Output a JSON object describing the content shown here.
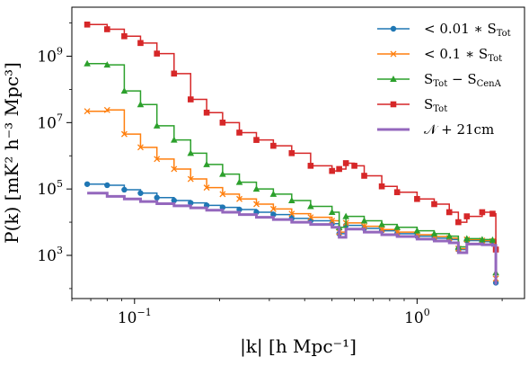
{
  "chart_data": {
    "type": "line",
    "xscale": "log",
    "yscale": "log",
    "xlim": [
      0.06,
      2.4
    ],
    "ylim": [
      50,
      30000000000.0
    ],
    "xlabel": "|k| [h Mpc⁻¹]",
    "ylabel": "P(k) [mK² h⁻³ Mpc³]",
    "xticks": [
      {
        "value": 0.1,
        "base": "10",
        "exp": "−1"
      },
      {
        "value": 1,
        "base": "10",
        "exp": "0"
      }
    ],
    "yticks": [
      {
        "value": 1000,
        "base": "10",
        "exp": "3"
      },
      {
        "value": 100000,
        "base": "10",
        "exp": "5"
      },
      {
        "value": 10000000,
        "base": "10",
        "exp": "7"
      },
      {
        "value": 1000000000,
        "base": "10",
        "exp": "9"
      }
    ],
    "legend_position": "top-right",
    "grid": false,
    "series": [
      {
        "name": "< 0.01 * S_Tot",
        "legend_label": "< 0.01 ∗ S",
        "legend_sub": "Tot",
        "color": "#1f77b4",
        "marker": "circle",
        "x": [
          0.068,
          0.08,
          0.092,
          0.105,
          0.12,
          0.138,
          0.158,
          0.18,
          0.205,
          0.235,
          0.27,
          0.31,
          0.36,
          0.42,
          0.5,
          0.53,
          0.56,
          0.65,
          0.75,
          0.85,
          1.0,
          1.15,
          1.3,
          1.4,
          1.5,
          1.7,
          1.85,
          1.9
        ],
        "y": [
          140000,
          130000,
          95000,
          75000,
          55000,
          45000,
          38000,
          32000,
          28000,
          24000,
          20000,
          17000,
          13000,
          11000,
          9000,
          4500,
          8000,
          6500,
          5500,
          4500,
          3800,
          3300,
          3000,
          1500,
          2800,
          2600,
          2500,
          150
        ]
      },
      {
        "name": "< 0.1 * S_Tot",
        "legend_label": "< 0.1 ∗ S",
        "legend_sub": "Tot",
        "color": "#ff7f0e",
        "marker": "x",
        "x": [
          0.068,
          0.08,
          0.092,
          0.105,
          0.12,
          0.138,
          0.158,
          0.18,
          0.205,
          0.235,
          0.27,
          0.31,
          0.36,
          0.42,
          0.5,
          0.53,
          0.56,
          0.65,
          0.75,
          0.85,
          1.0,
          1.15,
          1.3,
          1.4,
          1.5,
          1.7,
          1.85,
          1.9
        ],
        "y": [
          22000000,
          24000000,
          4500000,
          1800000,
          800000,
          400000,
          200000,
          110000,
          70000,
          50000,
          35000,
          25000,
          18000,
          14000,
          11000,
          5000,
          9500,
          7500,
          6000,
          5000,
          4200,
          3700,
          3300,
          1600,
          3000,
          2800,
          2700,
          200
        ]
      },
      {
        "name": "S_Tot − S_CenA",
        "legend_label": "S",
        "legend_sub": "Tot",
        "legend_label2": " − S",
        "legend_sub2": "CenA",
        "color": "#2ca02c",
        "marker": "triangle",
        "x": [
          0.068,
          0.08,
          0.092,
          0.105,
          0.12,
          0.138,
          0.158,
          0.18,
          0.205,
          0.235,
          0.27,
          0.31,
          0.36,
          0.42,
          0.5,
          0.53,
          0.56,
          0.65,
          0.75,
          0.85,
          1.0,
          1.15,
          1.3,
          1.4,
          1.5,
          1.7,
          1.85,
          1.9
        ],
        "y": [
          600000000,
          550000000,
          90000000,
          35000000,
          8000000,
          3000000,
          1200000,
          550000,
          280000,
          160000,
          100000,
          70000,
          45000,
          30000,
          20000,
          7000,
          15000,
          11000,
          8500,
          7000,
          5500,
          4500,
          3800,
          1800,
          3200,
          3000,
          2900,
          300
        ]
      },
      {
        "name": "S_Tot",
        "legend_label": "S",
        "legend_sub": "Tot",
        "color": "#d62728",
        "marker": "square",
        "x": [
          0.068,
          0.08,
          0.092,
          0.105,
          0.12,
          0.138,
          0.158,
          0.18,
          0.205,
          0.235,
          0.27,
          0.31,
          0.36,
          0.42,
          0.5,
          0.53,
          0.56,
          0.6,
          0.65,
          0.75,
          0.85,
          1.0,
          1.15,
          1.3,
          1.4,
          1.5,
          1.7,
          1.85,
          1.9
        ],
        "y": [
          9000000000,
          6500000000,
          4000000000,
          2500000000,
          1200000000,
          300000000,
          50000000,
          20000000,
          10000000,
          5000000,
          3000000,
          2000000,
          1200000,
          500000,
          350000,
          400000,
          600000,
          500000,
          250000,
          120000,
          80000,
          50000,
          35000,
          20000,
          10000,
          15000,
          20000,
          18000,
          1500
        ]
      },
      {
        "name": "N + 21cm",
        "legend_label": "𝒩 + 21cm",
        "legend_sub": "",
        "color": "#9467bd",
        "marker": "none",
        "x": [
          0.068,
          0.08,
          0.092,
          0.105,
          0.12,
          0.138,
          0.158,
          0.18,
          0.205,
          0.235,
          0.27,
          0.31,
          0.36,
          0.42,
          0.5,
          0.53,
          0.56,
          0.65,
          0.75,
          0.85,
          1.0,
          1.15,
          1.3,
          1.4,
          1.5,
          1.7,
          1.85,
          1.9
        ],
        "y": [
          75000,
          60000,
          50000,
          42000,
          36000,
          31000,
          27000,
          23000,
          20000,
          17000,
          14000,
          12000,
          10000,
          8500,
          7000,
          3500,
          6200,
          5000,
          4200,
          3700,
          3100,
          2700,
          2400,
          1200,
          2200,
          2100,
          2000,
          130
        ]
      }
    ]
  }
}
